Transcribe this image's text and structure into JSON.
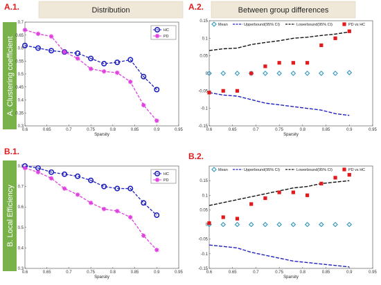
{
  "headers": {
    "a1": "A.1.",
    "a2": "A.2.",
    "b1": "B.1.",
    "b2": "B.2.",
    "distribution": "Distribution",
    "between": "Between group differences",
    "side_a": "A. Clustering coefficient",
    "side_b": "B. Local Efficiency"
  },
  "colors": {
    "hc": "#1f1fbf",
    "pd": "#e040e0",
    "upper": "#1f1fbf",
    "lower": "#111111",
    "mean": "#3a9bbf",
    "pdvshc": "#e31a1c",
    "side": "#79b24a",
    "header": "#efe8d8"
  },
  "chart_data": [
    {
      "id": "a1",
      "type": "line",
      "xlabel": "Sparsity",
      "ylabel": "",
      "xlim": [
        0.6,
        0.95
      ],
      "ylim": [
        0.3,
        0.7
      ],
      "xticks": [
        "0.6",
        "0.65",
        "0.7",
        "0.75",
        "0.8",
        "0.85",
        "0.9",
        "0.95"
      ],
      "yticks": [
        "0.3",
        "0.35",
        "0.4",
        "0.45",
        "0.5",
        "0.55",
        "0.6",
        "0.65",
        "0.7"
      ],
      "legend": "top-right",
      "x": [
        0.6,
        0.63,
        0.66,
        0.69,
        0.72,
        0.75,
        0.78,
        0.81,
        0.84,
        0.87,
        0.9
      ],
      "series": [
        {
          "name": "HC",
          "values": [
            0.61,
            0.6,
            0.59,
            0.585,
            0.58,
            0.56,
            0.54,
            0.545,
            0.555,
            0.49,
            0.44
          ]
        },
        {
          "name": "PD",
          "values": [
            0.67,
            0.655,
            0.645,
            0.585,
            0.56,
            0.52,
            0.51,
            0.505,
            0.47,
            0.38,
            0.32
          ]
        }
      ]
    },
    {
      "id": "a2",
      "type": "scatter",
      "xlabel": "Sparsity",
      "ylabel": "",
      "xlim": [
        0.6,
        0.95
      ],
      "ylim": [
        -0.15,
        0.15
      ],
      "xticks": [
        "0.6",
        "0.65",
        "0.7",
        "0.75",
        "0.8",
        "0.85",
        "0.9",
        "0.95"
      ],
      "yticks": [
        "-0.15",
        "-0.1",
        "-0.05",
        "0",
        "0.05",
        "0.1",
        "0.15"
      ],
      "legend": "top",
      "x": [
        0.6,
        0.63,
        0.66,
        0.69,
        0.72,
        0.75,
        0.78,
        0.81,
        0.84,
        0.87,
        0.9
      ],
      "series": [
        {
          "name": "Mean",
          "values": [
            0,
            0,
            0,
            0,
            0,
            0,
            0,
            0,
            0,
            0,
            0.002
          ]
        },
        {
          "name": "Upperbound(95% CI)",
          "values": [
            -0.055,
            -0.062,
            -0.065,
            -0.075,
            -0.085,
            -0.09,
            -0.095,
            -0.1,
            -0.105,
            -0.115,
            -0.12
          ]
        },
        {
          "name": "Lowerbound(95% CI)",
          "values": [
            0.065,
            0.07,
            0.072,
            0.082,
            0.088,
            0.093,
            0.1,
            0.103,
            0.108,
            0.112,
            0.118
          ]
        },
        {
          "name": "PD vs HC",
          "values": [
            -0.055,
            -0.05,
            -0.05,
            0,
            0.02,
            0.03,
            0.03,
            0.03,
            0.08,
            0.1,
            0.12
          ]
        }
      ]
    },
    {
      "id": "b1",
      "type": "line",
      "xlabel": "Sparsity",
      "ylabel": "",
      "xlim": [
        0.6,
        0.95
      ],
      "ylim": [
        0.3,
        0.8
      ],
      "xticks": [
        "0.6",
        "0.65",
        "0.7",
        "0.75",
        "0.8",
        "0.85",
        "0.9",
        "0.95"
      ],
      "yticks": [
        "0.3",
        "0.4",
        "0.5",
        "0.6",
        "0.7",
        "0.8"
      ],
      "legend": "top-right",
      "x": [
        0.6,
        0.63,
        0.66,
        0.69,
        0.72,
        0.75,
        0.78,
        0.81,
        0.84,
        0.87,
        0.9
      ],
      "series": [
        {
          "name": "HC",
          "values": [
            0.8,
            0.79,
            0.77,
            0.76,
            0.75,
            0.73,
            0.7,
            0.69,
            0.69,
            0.62,
            0.56
          ]
        },
        {
          "name": "PD",
          "values": [
            0.79,
            0.77,
            0.74,
            0.69,
            0.66,
            0.62,
            0.59,
            0.58,
            0.55,
            0.46,
            0.39
          ]
        }
      ]
    },
    {
      "id": "b2",
      "type": "scatter",
      "xlabel": "Sparsity",
      "ylabel": "",
      "xlim": [
        0.6,
        0.95
      ],
      "ylim": [
        -0.15,
        0.2
      ],
      "xticks": [
        "0.6",
        "0.65",
        "0.7",
        "0.75",
        "0.8",
        "0.85",
        "0.9",
        "0.95"
      ],
      "yticks": [
        "-0.15",
        "-0.1",
        "-0.05",
        "0",
        "0.05",
        "0.1",
        "0.15"
      ],
      "legend": "top",
      "x": [
        0.6,
        0.63,
        0.66,
        0.69,
        0.72,
        0.75,
        0.78,
        0.81,
        0.84,
        0.87,
        0.9
      ],
      "series": [
        {
          "name": "Mean",
          "values": [
            0,
            0,
            0,
            0,
            0,
            0,
            0,
            0,
            0,
            0,
            0
          ]
        },
        {
          "name": "Upperbound(95% CI)",
          "values": [
            -0.07,
            -0.075,
            -0.08,
            -0.095,
            -0.105,
            -0.115,
            -0.125,
            -0.13,
            -0.135,
            -0.14,
            -0.145
          ]
        },
        {
          "name": "Lowerbound(95% CI)",
          "values": [
            0.065,
            0.075,
            0.085,
            0.095,
            0.105,
            0.115,
            0.125,
            0.13,
            0.14,
            0.145,
            0.15
          ]
        },
        {
          "name": "PD vs HC",
          "values": [
            0.005,
            0.025,
            0.02,
            0.07,
            0.09,
            0.11,
            0.11,
            0.1,
            0.14,
            0.16,
            0.17
          ]
        }
      ]
    }
  ]
}
